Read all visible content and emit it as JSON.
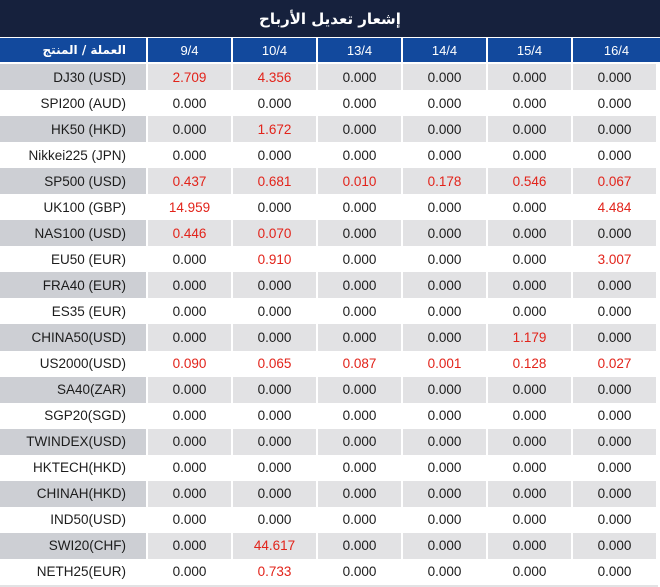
{
  "title": "إشعار تعديل الأرباح",
  "colors": {
    "title_bg": "#16213D",
    "header_bg": "#12499D",
    "label_gray": "#CDCFD4",
    "cell_gray": "#E2E2E4",
    "red": "#E2231A",
    "text_dark": "#1C1C1C"
  },
  "table": {
    "label_header": "العملة / المنتج",
    "date_columns": [
      "9/4",
      "10/4",
      "13/4",
      "14/4",
      "15/4",
      "16/4"
    ],
    "rows": [
      {
        "label": "DJ30 (USD)",
        "values": [
          "2.709",
          "4.356",
          "0.000",
          "0.000",
          "0.000",
          "0.000"
        ],
        "red": [
          true,
          true,
          false,
          false,
          false,
          false
        ]
      },
      {
        "label": "SPI200 (AUD)",
        "values": [
          "0.000",
          "0.000",
          "0.000",
          "0.000",
          "0.000",
          "0.000"
        ],
        "red": [
          false,
          false,
          false,
          false,
          false,
          false
        ]
      },
      {
        "label": "HK50 (HKD)",
        "values": [
          "0.000",
          "1.672",
          "0.000",
          "0.000",
          "0.000",
          "0.000"
        ],
        "red": [
          false,
          true,
          false,
          false,
          false,
          false
        ]
      },
      {
        "label": "Nikkei225 (JPN)",
        "values": [
          "0.000",
          "0.000",
          "0.000",
          "0.000",
          "0.000",
          "0.000"
        ],
        "red": [
          false,
          false,
          false,
          false,
          false,
          false
        ]
      },
      {
        "label": "SP500 (USD)",
        "values": [
          "0.437",
          "0.681",
          "0.010",
          "0.178",
          "0.546",
          "0.067"
        ],
        "red": [
          true,
          true,
          true,
          true,
          true,
          true
        ]
      },
      {
        "label": "UK100 (GBP)",
        "values": [
          "14.959",
          "0.000",
          "0.000",
          "0.000",
          "0.000",
          "4.484"
        ],
        "red": [
          true,
          false,
          false,
          false,
          false,
          true
        ]
      },
      {
        "label": "NAS100 (USD)",
        "values": [
          "0.446",
          "0.070",
          "0.000",
          "0.000",
          "0.000",
          "0.000"
        ],
        "red": [
          true,
          true,
          false,
          false,
          false,
          false
        ]
      },
      {
        "label": "EU50 (EUR)",
        "values": [
          "0.000",
          "0.910",
          "0.000",
          "0.000",
          "0.000",
          "3.007"
        ],
        "red": [
          false,
          true,
          false,
          false,
          false,
          true
        ]
      },
      {
        "label": "FRA40 (EUR)",
        "values": [
          "0.000",
          "0.000",
          "0.000",
          "0.000",
          "0.000",
          "0.000"
        ],
        "red": [
          false,
          false,
          false,
          false,
          false,
          false
        ]
      },
      {
        "label": "ES35 (EUR)",
        "values": [
          "0.000",
          "0.000",
          "0.000",
          "0.000",
          "0.000",
          "0.000"
        ],
        "red": [
          false,
          false,
          false,
          false,
          false,
          false
        ]
      },
      {
        "label": "CHINA50(USD)",
        "values": [
          "0.000",
          "0.000",
          "0.000",
          "0.000",
          "1.179",
          "0.000"
        ],
        "red": [
          false,
          false,
          false,
          false,
          true,
          false
        ]
      },
      {
        "label": "US2000(USD)",
        "values": [
          "0.090",
          "0.065",
          "0.087",
          "0.001",
          "0.128",
          "0.027"
        ],
        "red": [
          true,
          true,
          true,
          true,
          true,
          true
        ]
      },
      {
        "label": "SA40(ZAR)",
        "values": [
          "0.000",
          "0.000",
          "0.000",
          "0.000",
          "0.000",
          "0.000"
        ],
        "red": [
          false,
          false,
          false,
          false,
          false,
          false
        ]
      },
      {
        "label": "SGP20(SGD)",
        "values": [
          "0.000",
          "0.000",
          "0.000",
          "0.000",
          "0.000",
          "0.000"
        ],
        "red": [
          false,
          false,
          false,
          false,
          false,
          false
        ]
      },
      {
        "label": "TWINDEX(USD)",
        "values": [
          "0.000",
          "0.000",
          "0.000",
          "0.000",
          "0.000",
          "0.000"
        ],
        "red": [
          false,
          false,
          false,
          false,
          false,
          false
        ]
      },
      {
        "label": "HKTECH(HKD)",
        "values": [
          "0.000",
          "0.000",
          "0.000",
          "0.000",
          "0.000",
          "0.000"
        ],
        "red": [
          false,
          false,
          false,
          false,
          false,
          false
        ]
      },
      {
        "label": "CHINAH(HKD)",
        "values": [
          "0.000",
          "0.000",
          "0.000",
          "0.000",
          "0.000",
          "0.000"
        ],
        "red": [
          false,
          false,
          false,
          false,
          false,
          false
        ]
      },
      {
        "label": "IND50(USD)",
        "values": [
          "0.000",
          "0.000",
          "0.000",
          "0.000",
          "0.000",
          "0.000"
        ],
        "red": [
          false,
          false,
          false,
          false,
          false,
          false
        ]
      },
      {
        "label": "SWI20(CHF)",
        "values": [
          "0.000",
          "44.617",
          "0.000",
          "0.000",
          "0.000",
          "0.000"
        ],
        "red": [
          false,
          true,
          false,
          false,
          false,
          false
        ]
      },
      {
        "label": "NETH25(EUR)",
        "values": [
          "0.000",
          "0.733",
          "0.000",
          "0.000",
          "0.000",
          "0.000"
        ],
        "red": [
          false,
          true,
          false,
          false,
          false,
          false
        ]
      }
    ]
  }
}
